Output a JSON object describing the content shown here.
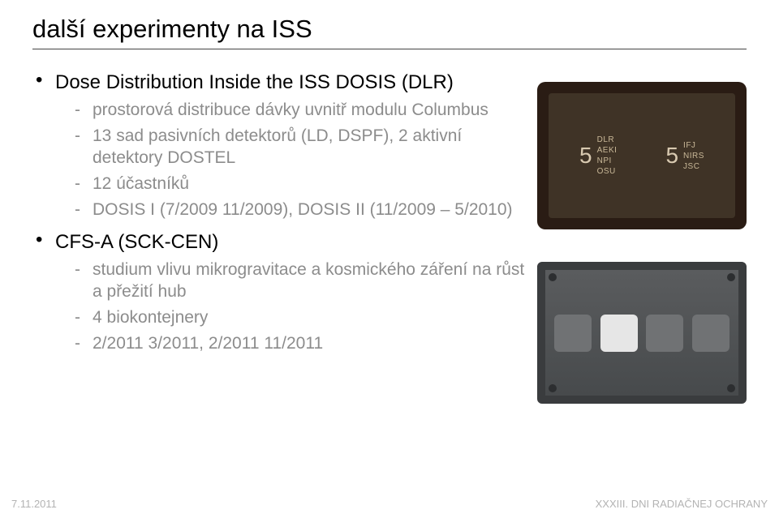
{
  "title": "další experimenty na ISS",
  "bullets": [
    {
      "head": "Dose Distribution Inside the ISS DOSIS (DLR)",
      "sub": [
        "prostorová distribuce dávky uvnitř modulu Columbus",
        "13 sad pasivních detektorů (LD, DSPF), 2 aktivní detektory DOSTEL",
        "12 účastníků",
        "DOSIS I (7/2009 11/2009), DOSIS II (11/2009 – 5/2010)"
      ]
    },
    {
      "head": "CFS-A (SCK-CEN)",
      "sub": [
        "studium vlivu mikrogravitace a kosmického záření na růst a přežití hub",
        "4 biokontejnery",
        "2/2011 3/2011, 2/2011 11/2011"
      ]
    }
  ],
  "detector_tray": {
    "frame_color": "#2a1c14",
    "inner_color": "#3f3326",
    "groups": [
      {
        "number": "5",
        "labels": [
          "DLR",
          "AEKI",
          "NPI",
          "OSU"
        ]
      },
      {
        "number": "5",
        "labels": [
          "IFJ",
          "NIRS",
          "JSC"
        ]
      }
    ],
    "number_color": "#d8c9b0",
    "label_color": "#c9b898"
  },
  "biocontainer": {
    "outer_color": "#3a3c3e",
    "body_color": "#5a5c5e",
    "slots": 4,
    "white_slot_index": 1,
    "slot_color": "#707274",
    "white_slot_color": "#e6e6e6"
  },
  "footer": {
    "left": "7.11.2011",
    "right": "XXXIII. DNI RADIAČNEJ OCHRANY"
  },
  "colors": {
    "title": "#000000",
    "subtext": "#8c8c8c",
    "rule": "#444444",
    "footer": "#b3b3b3",
    "background": "#ffffff"
  },
  "typography": {
    "title_fontsize": 31,
    "head_fontsize": 24,
    "sub_fontsize": 21,
    "footer_fontsize": 13,
    "font_family": "Arial"
  }
}
